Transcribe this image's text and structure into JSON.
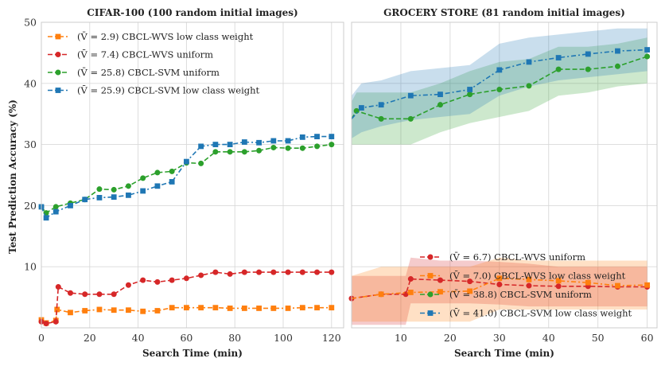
{
  "figure": {
    "ylabel": "Test Prediction Accuracy (%)",
    "xlabel": "Search Time (min)"
  },
  "chart_data": [
    {
      "type": "line",
      "title": "CIFAR-100 (100 random initial images)",
      "xlabel": "Search Time (min)",
      "ylabel": "Test Prediction Accuracy (%)",
      "xlim": [
        0,
        125
      ],
      "ylim": [
        0,
        50
      ],
      "xticks": [
        0,
        20,
        40,
        60,
        80,
        100,
        120
      ],
      "yticks": [
        10,
        20,
        30,
        40,
        50
      ],
      "grid": true,
      "legend_position": "upper-left",
      "series": [
        {
          "name": "(V̄ =  2.9) CBCL-WVS low class weight",
          "color": "#ff7f0e",
          "marker": "square",
          "dash": "6,3,2,3",
          "x": [
            0,
            2,
            6,
            6.5,
            12,
            18,
            24,
            30,
            36,
            42,
            48,
            54,
            60,
            66,
            72,
            78,
            84,
            90,
            96,
            102,
            108,
            114,
            120
          ],
          "y": [
            1.3,
            0.8,
            1.2,
            3.0,
            2.5,
            2.8,
            3.0,
            2.9,
            2.9,
            2.7,
            2.8,
            3.3,
            3.3,
            3.3,
            3.3,
            3.2,
            3.2,
            3.2,
            3.2,
            3.2,
            3.3,
            3.3,
            3.3
          ]
        },
        {
          "name": "(V̄ =  7.4) CBCL-WVS uniform",
          "color": "#d62728",
          "marker": "circle",
          "dash": "6,3",
          "x": [
            0,
            2,
            6,
            7,
            12,
            18,
            24,
            30,
            36,
            42,
            48,
            54,
            60,
            66,
            72,
            78,
            84,
            90,
            96,
            102,
            108,
            114,
            120
          ],
          "y": [
            1.0,
            0.7,
            1.0,
            6.7,
            5.7,
            5.5,
            5.5,
            5.5,
            7.0,
            7.8,
            7.5,
            7.8,
            8.1,
            8.6,
            9.1,
            8.8,
            9.1,
            9.1,
            9.1,
            9.1,
            9.1,
            9.1,
            9.1
          ]
        },
        {
          "name": "(V̄ = 25.8) CBCL-SVM uniform",
          "color": "#2ca02c",
          "marker": "circle",
          "dash": "6,3",
          "x": [
            0,
            2,
            6,
            12,
            18,
            24,
            30,
            36,
            42,
            48,
            54,
            60,
            66,
            72,
            78,
            84,
            90,
            96,
            102,
            108,
            114,
            120
          ],
          "y": [
            19.8,
            18.8,
            19.8,
            20.4,
            21.0,
            22.7,
            22.6,
            23.2,
            24.5,
            25.4,
            25.6,
            27.0,
            26.9,
            28.8,
            28.8,
            28.8,
            29.0,
            29.5,
            29.4,
            29.4,
            29.7,
            30.0
          ]
        },
        {
          "name": "(V̄ = 25.9) CBCL-SVM low class weight",
          "color": "#1f77b4",
          "marker": "square",
          "dash": "6,3,2,3",
          "x": [
            0,
            2,
            6,
            12,
            18,
            24,
            30,
            36,
            42,
            48,
            54,
            60,
            66,
            72,
            78,
            84,
            90,
            96,
            102,
            108,
            114,
            120
          ],
          "y": [
            19.8,
            18.0,
            19.0,
            20.0,
            21.0,
            21.3,
            21.4,
            21.7,
            22.4,
            23.2,
            23.9,
            27.2,
            29.7,
            30.0,
            30.0,
            30.4,
            30.3,
            30.6,
            30.6,
            31.2,
            31.3,
            31.3
          ]
        }
      ]
    },
    {
      "type": "line",
      "title": "GROCERY STORE (81 random initial images)",
      "xlabel": "Search Time (min)",
      "xlim": [
        0,
        62
      ],
      "ylim": [
        0,
        50
      ],
      "xticks": [
        10,
        20,
        30,
        40,
        50,
        60
      ],
      "grid": true,
      "legend_position": "lower-right",
      "series": [
        {
          "name": "(V̄ =  6.7) CBCL-WVS uniform",
          "color": "#d62728",
          "marker": "circle",
          "dash": "6,3",
          "x": [
            0,
            6,
            11,
            12,
            18,
            24,
            30,
            36,
            42,
            48,
            54,
            60
          ],
          "y": [
            4.8,
            5.5,
            5.5,
            8.0,
            7.8,
            7.6,
            7.1,
            6.9,
            6.8,
            6.8,
            6.7,
            6.7
          ],
          "band_low": [
            0.5,
            0.5,
            0.5,
            4.0,
            4.0,
            4.0,
            3.8,
            3.5,
            3.5,
            3.5,
            3.5,
            3.5
          ],
          "band_high": [
            8.5,
            8.5,
            8.5,
            11.5,
            11.0,
            11.0,
            10.8,
            10.5,
            10.0,
            10.0,
            10.0,
            10.0
          ]
        },
        {
          "name": "(V̄ =  7.0) CBCL-WVS low class weight",
          "color": "#ff7f0e",
          "marker": "square",
          "dash": "6,3,2,3",
          "x": [
            0,
            6,
            12,
            18,
            24,
            30,
            36,
            42,
            48,
            54,
            60
          ],
          "y": [
            4.8,
            5.5,
            5.8,
            5.9,
            6.0,
            8.1,
            7.9,
            7.7,
            7.4,
            6.9,
            7.0
          ],
          "band_low": [
            1.0,
            1.0,
            1.0,
            1.0,
            1.0,
            3.0,
            3.0,
            3.0,
            3.0,
            3.0,
            3.0
          ],
          "band_high": [
            8.5,
            10.0,
            10.0,
            10.0,
            10.0,
            11.5,
            11.0,
            11.0,
            11.0,
            11.0,
            11.0
          ]
        },
        {
          "name": "(V̄ = 38.8) CBCL-SVM uniform",
          "color": "#2ca02c",
          "marker": "circle",
          "dash": "6,3",
          "x": [
            0,
            1,
            6,
            12,
            18,
            24,
            30,
            36,
            42,
            48,
            54,
            60
          ],
          "y": [
            34.2,
            35.5,
            34.2,
            34.2,
            36.5,
            38.2,
            39.0,
            39.6,
            42.3,
            42.3,
            42.8,
            44.4
          ],
          "band_low": [
            30.0,
            30.0,
            30.0,
            30.0,
            32.0,
            33.5,
            34.5,
            35.5,
            38.0,
            38.5,
            39.5,
            40.0
          ],
          "band_high": [
            37.0,
            38.5,
            38.5,
            38.5,
            40.0,
            42.0,
            43.5,
            44.0,
            46.0,
            46.0,
            46.5,
            47.5
          ]
        },
        {
          "name": "(V̄ = 41.0) CBCL-SVM low class weight",
          "color": "#1f77b4",
          "marker": "square",
          "dash": "6,3,2,3",
          "x": [
            0,
            2,
            6,
            12,
            18,
            24,
            30,
            36,
            42,
            48,
            54,
            60
          ],
          "y": [
            34.2,
            36.0,
            36.5,
            38.0,
            38.2,
            39.0,
            42.2,
            43.5,
            44.2,
            44.8,
            45.3,
            45.5
          ],
          "band_low": [
            31.0,
            32.0,
            33.0,
            34.0,
            34.5,
            35.0,
            38.0,
            39.5,
            40.5,
            41.0,
            41.5,
            42.0
          ],
          "band_high": [
            38.0,
            40.0,
            40.5,
            42.0,
            42.5,
            43.0,
            46.5,
            47.5,
            48.0,
            48.5,
            49.0,
            49.0
          ]
        }
      ]
    }
  ]
}
